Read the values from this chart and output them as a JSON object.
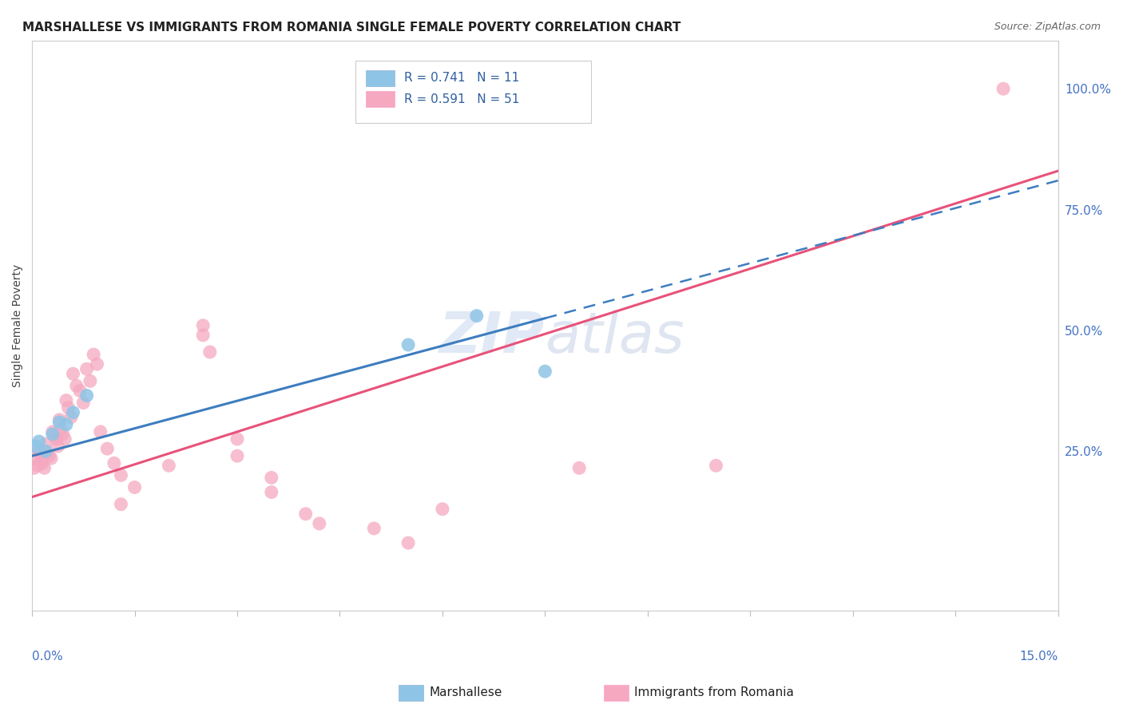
{
  "title": "MARSHALLESE VS IMMIGRANTS FROM ROMANIA SINGLE FEMALE POVERTY CORRELATION CHART",
  "source": "Source: ZipAtlas.com",
  "ylabel": "Single Female Poverty",
  "right_yticklabels": [
    "",
    "25.0%",
    "50.0%",
    "75.0%",
    "100.0%"
  ],
  "right_ytick_vals": [
    0.0,
    0.25,
    0.5,
    0.75,
    1.0
  ],
  "xlim": [
    0.0,
    0.15
  ],
  "ylim": [
    -0.08,
    1.1
  ],
  "marshallese_x": [
    0.0005,
    0.001,
    0.002,
    0.003,
    0.004,
    0.005,
    0.006,
    0.008,
    0.055,
    0.065,
    0.075
  ],
  "marshallese_y": [
    0.26,
    0.27,
    0.25,
    0.285,
    0.31,
    0.305,
    0.33,
    0.365,
    0.47,
    0.53,
    0.415
  ],
  "romania_x": [
    0.0003,
    0.0005,
    0.0008,
    0.001,
    0.0012,
    0.0015,
    0.0018,
    0.002,
    0.0022,
    0.0025,
    0.0028,
    0.003,
    0.0033,
    0.0036,
    0.0038,
    0.004,
    0.0042,
    0.0045,
    0.0048,
    0.005,
    0.0053,
    0.0057,
    0.006,
    0.0065,
    0.007,
    0.0075,
    0.008,
    0.0085,
    0.009,
    0.0095,
    0.01,
    0.011,
    0.012,
    0.013,
    0.015,
    0.02,
    0.025,
    0.026,
    0.03,
    0.035,
    0.04,
    0.05,
    0.06,
    0.08,
    0.1,
    0.013,
    0.025,
    0.03,
    0.035,
    0.042,
    0.055,
    0.142
  ],
  "romania_y": [
    0.215,
    0.235,
    0.22,
    0.25,
    0.23,
    0.225,
    0.215,
    0.265,
    0.245,
    0.24,
    0.235,
    0.29,
    0.28,
    0.275,
    0.26,
    0.315,
    0.295,
    0.285,
    0.275,
    0.355,
    0.34,
    0.32,
    0.41,
    0.385,
    0.375,
    0.35,
    0.42,
    0.395,
    0.45,
    0.43,
    0.29,
    0.255,
    0.225,
    0.2,
    0.175,
    0.22,
    0.49,
    0.455,
    0.275,
    0.195,
    0.12,
    0.09,
    0.13,
    0.215,
    0.22,
    0.14,
    0.51,
    0.24,
    0.165,
    0.1,
    0.06,
    1.0
  ],
  "blue_color": "#8ec5e6",
  "pink_color": "#f5a8c0",
  "blue_line_color": "#3d7dbf",
  "pink_line_color": "#e8527a",
  "blue_line_slope": 3.8,
  "blue_line_intercept": 0.24,
  "pink_line_slope": 4.5,
  "pink_line_intercept": 0.155,
  "background_color": "#ffffff",
  "grid_color": "#d8d8e0",
  "title_fontsize": 11,
  "axis_label_fontsize": 10,
  "tick_fontsize": 11,
  "source_fontsize": 9,
  "watermark_fontsize": 52
}
